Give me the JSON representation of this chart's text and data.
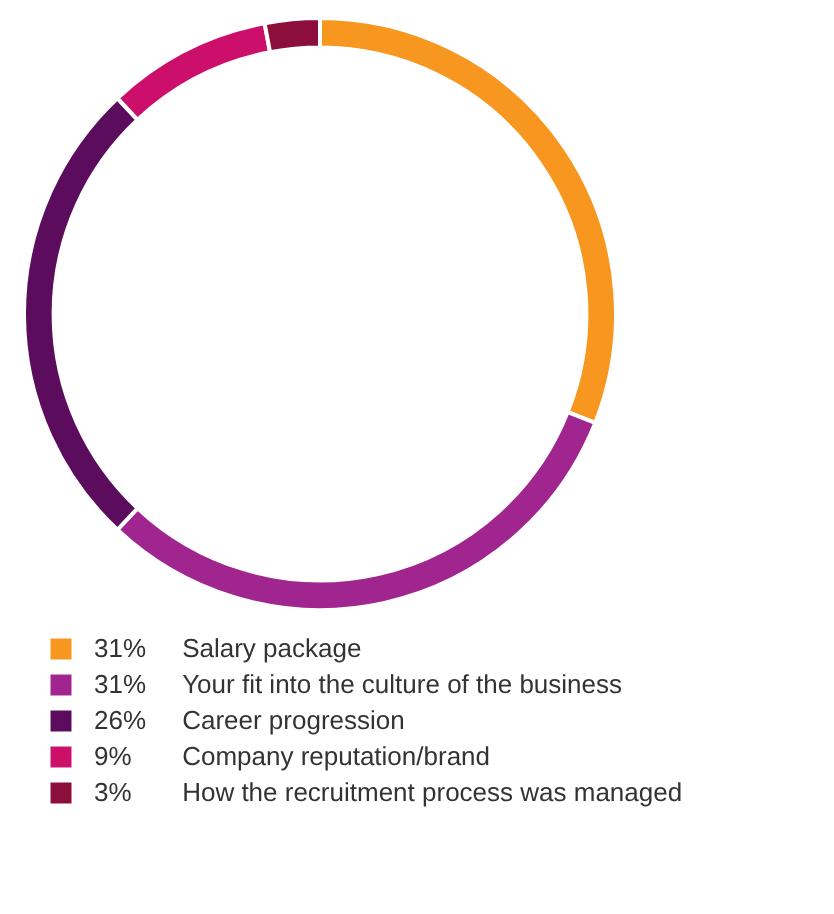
{
  "chart_data": {
    "type": "donut",
    "categories": [
      "Salary package",
      "Your fit into the culture of the business",
      "Career progression",
      "Company reputation/brand",
      "How the recruitment process was managed"
    ],
    "values": [
      31,
      31,
      26,
      9,
      3
    ],
    "value_labels": [
      "31%",
      "31%",
      "26%",
      "9%",
      "3%"
    ],
    "colors": [
      "#f7971f",
      "#a0258f",
      "#5c0c5c",
      "#cc0f6b",
      "#8c0e3a"
    ],
    "legend": "bottom"
  }
}
